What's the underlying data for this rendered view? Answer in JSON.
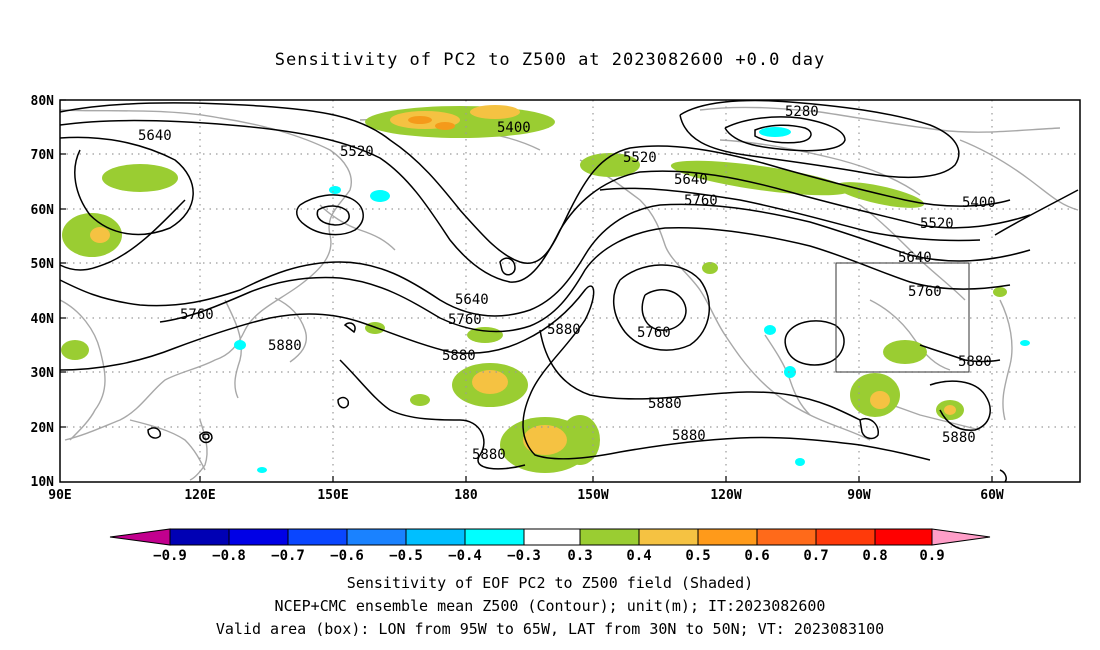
{
  "title": "Sensitivity of PC2 to Z500 at 2023082600 +0.0 day",
  "map": {
    "lat_labels": [
      "80N",
      "70N",
      "60N",
      "50N",
      "40N",
      "30N",
      "20N",
      "10N"
    ],
    "lon_labels": [
      "90E",
      "120E",
      "150E",
      "180",
      "150W",
      "120W",
      "90W",
      "60W"
    ],
    "contour_labels": [
      {
        "text": "5280"
      },
      {
        "text": "5400"
      },
      {
        "text": "5400"
      },
      {
        "text": "5520"
      },
      {
        "text": "5520"
      },
      {
        "text": "5520"
      },
      {
        "text": "5640"
      },
      {
        "text": "5640"
      },
      {
        "text": "5640"
      },
      {
        "text": "5640"
      },
      {
        "text": "5760"
      },
      {
        "text": "5760"
      },
      {
        "text": "5760"
      },
      {
        "text": "5760"
      },
      {
        "text": "5760"
      },
      {
        "text": "5880"
      },
      {
        "text": "5880"
      },
      {
        "text": "5880"
      },
      {
        "text": "5880"
      },
      {
        "text": "5880"
      },
      {
        "text": "5880"
      },
      {
        "text": "5880"
      },
      {
        "text": "5880"
      }
    ],
    "valid_box": {
      "lon_from": "95W",
      "lon_to": "65W",
      "lat_from": "30N",
      "lat_to": "50N"
    },
    "colors": {
      "contour": "#000000",
      "coast": "#a8a8a8",
      "grid": "#9a9a9a",
      "pos_03": "#9acd32",
      "pos_04": "#f5c242",
      "pos_05": "#f59a1a",
      "neg_03": "#00ffff"
    }
  },
  "colorbar": {
    "labels": [
      "−0.9",
      "−0.8",
      "−0.7",
      "−0.6",
      "−0.5",
      "−0.4",
      "−0.3",
      "0.3",
      "0.4",
      "0.5",
      "0.6",
      "0.7",
      "0.8",
      "0.9"
    ],
    "colors": [
      "#c2008e",
      "#0000b4",
      "#0000e6",
      "#0a46ff",
      "#1a82ff",
      "#00bfff",
      "#00ffff",
      "#ffffff",
      "#9acd32",
      "#f5c242",
      "#ff9a1a",
      "#ff6a1a",
      "#ff3a0a",
      "#ff0000",
      "#ff9ec8"
    ]
  },
  "captions": [
    "Sensitivity of EOF PC2 to Z500 field (Shaded)",
    "NCEP+CMC ensemble mean Z500 (Contour); unit(m); IT:2023082600",
    "Valid area (box): LON from 95W to 65W, LAT from 30N to 50N; VT: 2023083100"
  ]
}
